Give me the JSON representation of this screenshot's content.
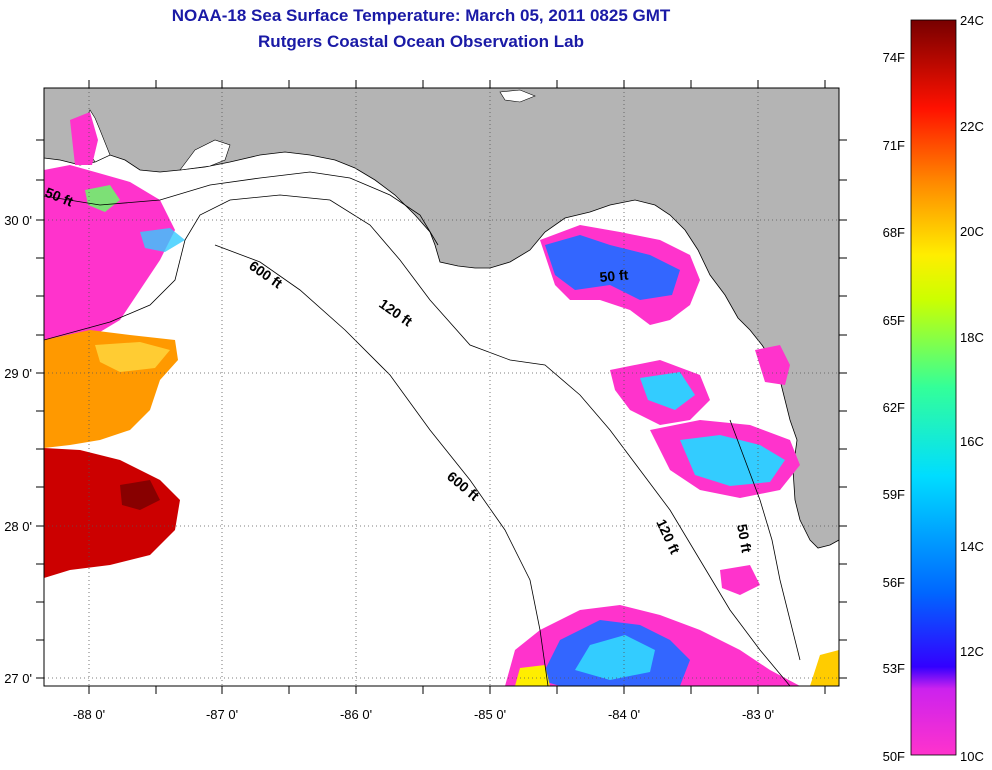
{
  "title": "NOAA-18 Sea Surface Temperature:  March 05, 2011 0825 GMT",
  "subtitle": "Rutgers Coastal Ocean Observation Lab",
  "latitude_labels": [
    "30 0'",
    "29 0'",
    "28 0'",
    "27 0'"
  ],
  "longitude_labels": [
    "-88 0'",
    "-87 0'",
    "-86 0'",
    "-85 0'",
    "-84 0'",
    "-83 0'"
  ],
  "contours": {
    "c50_west": "50 ft",
    "c600_west": "600 ft",
    "c120_north": "120 ft",
    "c50_east": "50 ft",
    "c600_south": "600 ft",
    "c120_south": "120 ft",
    "c50_south": "50 ft"
  },
  "colorbar": {
    "fahrenheit": [
      "74F",
      "71F",
      "68F",
      "65F",
      "62F",
      "59F",
      "56F",
      "53F",
      "50F"
    ],
    "celsius": [
      "24C",
      "22C",
      "20C",
      "18C",
      "16C",
      "14C",
      "12C",
      "10C"
    ]
  },
  "colors": {
    "title": "#1a1aa6",
    "land": "#b4b4b4",
    "water": "#ffffff",
    "cold": "#ff33cc",
    "warm": "#cc0000"
  }
}
